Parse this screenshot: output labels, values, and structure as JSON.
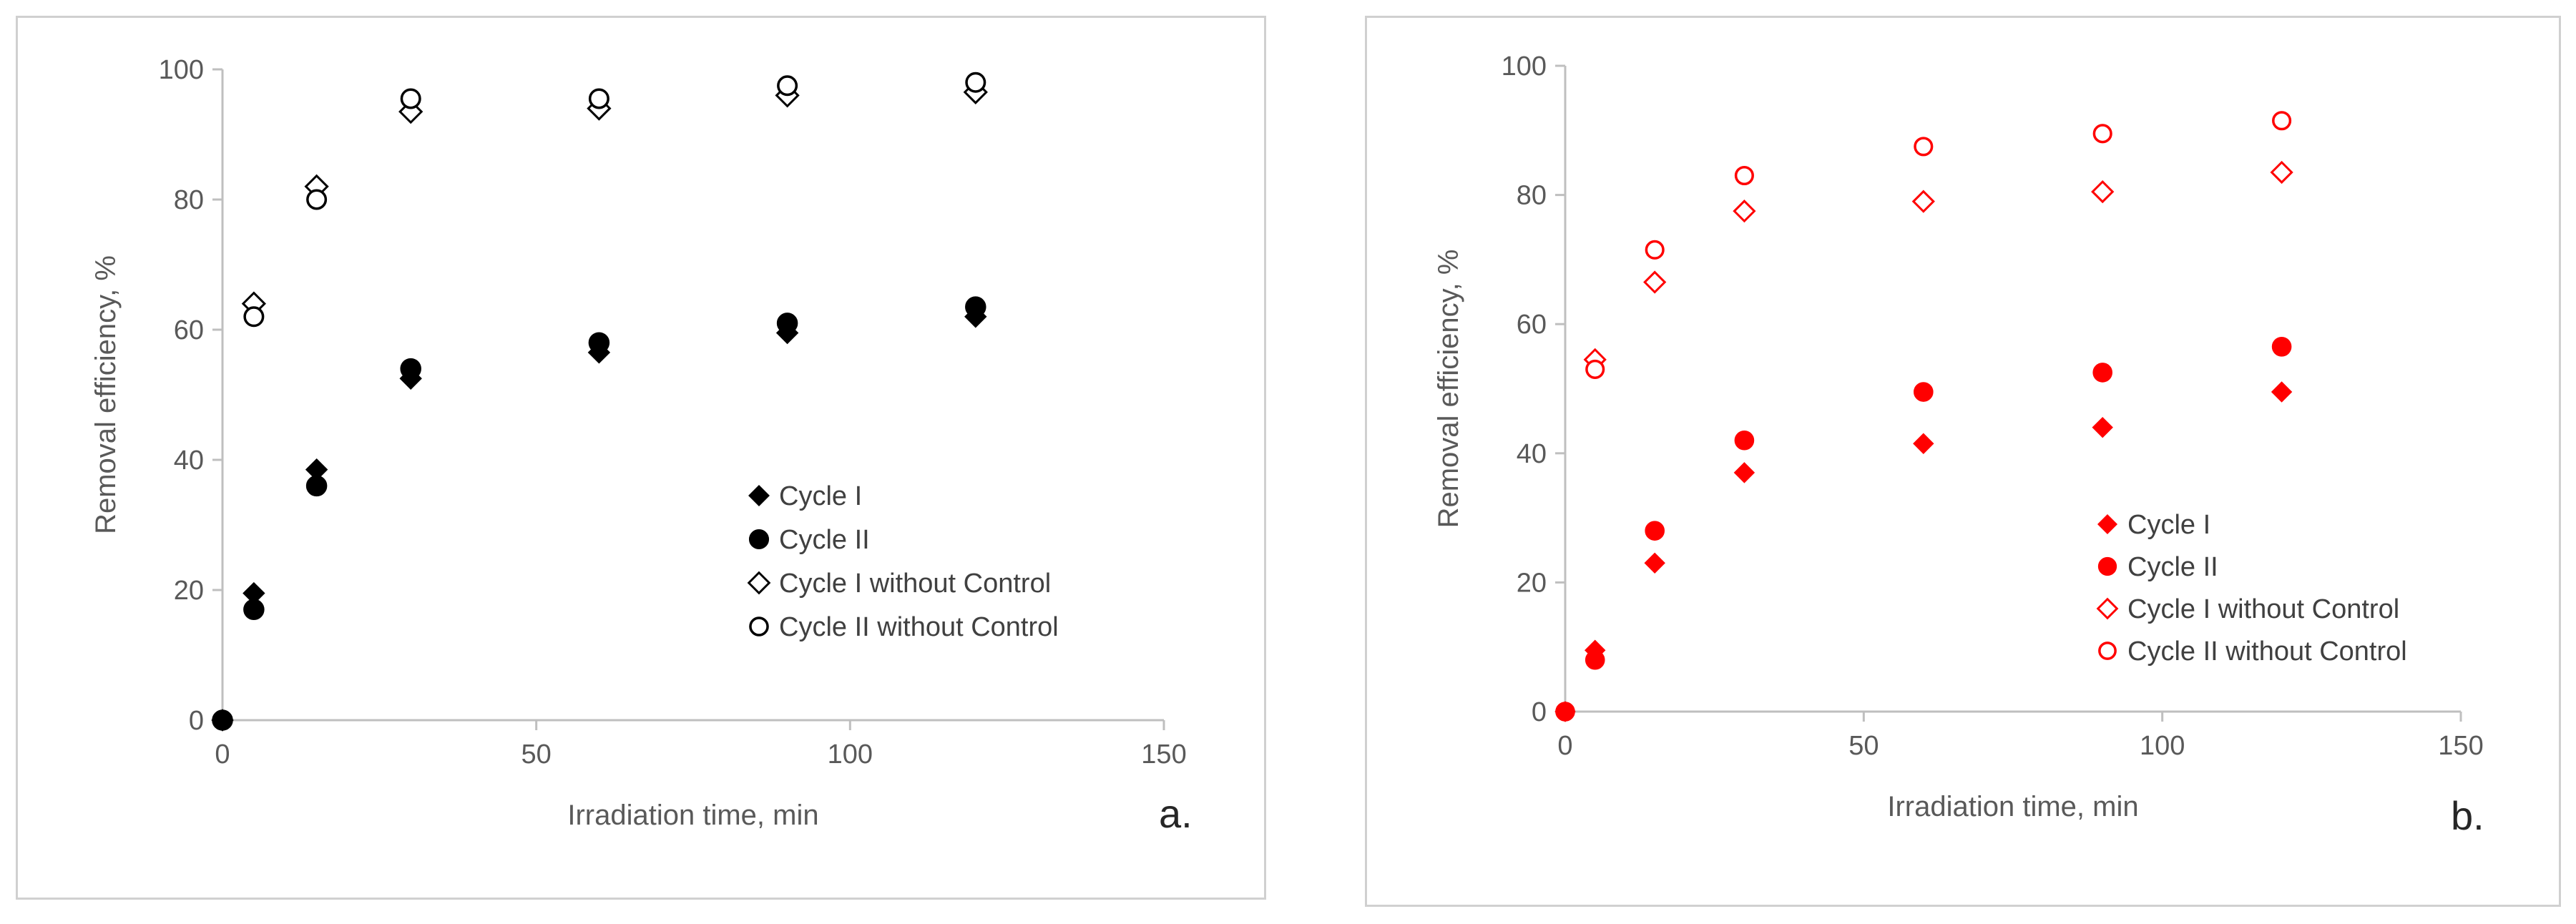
{
  "chart_data": [
    {
      "type": "scatter",
      "panel_label": "a.",
      "xlabel": "Irradiation time, min",
      "ylabel": "Removal efficiency, %",
      "xlim": [
        0,
        150
      ],
      "ylim": [
        0,
        100
      ],
      "xticks": [
        0,
        50,
        100,
        150
      ],
      "yticks": [
        0,
        20,
        40,
        60,
        80,
        100
      ],
      "color": "#000000",
      "legend_position": "bottom-right",
      "series": [
        {
          "name": "Cycle I",
          "marker": "diamond-filled",
          "x": [
            0,
            5,
            15,
            30,
            60,
            90,
            120
          ],
          "y": [
            0,
            19.5,
            38.5,
            52.5,
            56.5,
            59.5,
            62
          ]
        },
        {
          "name": "Cycle II",
          "marker": "circle-filled",
          "x": [
            0,
            5,
            15,
            30,
            60,
            90,
            120
          ],
          "y": [
            0,
            17,
            36,
            54,
            58,
            61,
            63.5
          ]
        },
        {
          "name": "Cycle I without Control",
          "marker": "diamond-open",
          "x": [
            5,
            15,
            30,
            60,
            90,
            120
          ],
          "y": [
            64,
            82,
            93.5,
            94,
            96,
            96.5
          ]
        },
        {
          "name": "Cycle II without Control",
          "marker": "circle-open",
          "x": [
            5,
            15,
            30,
            60,
            90,
            120
          ],
          "y": [
            62,
            80,
            95.5,
            95.5,
            97.5,
            98
          ]
        }
      ]
    },
    {
      "type": "scatter",
      "panel_label": "b.",
      "xlabel": "Irradiation time, min",
      "ylabel": "Removal efficiency, %",
      "xlim": [
        0,
        150
      ],
      "ylim": [
        0,
        100
      ],
      "xticks": [
        0,
        50,
        100,
        150
      ],
      "yticks": [
        0,
        20,
        40,
        60,
        80,
        100
      ],
      "color": "#ff0000",
      "legend_position": "bottom-right",
      "series": [
        {
          "name": "Cycle I",
          "marker": "diamond-filled",
          "x": [
            0,
            5,
            15,
            30,
            60,
            90,
            120
          ],
          "y": [
            0,
            9.5,
            23,
            37,
            41.5,
            44,
            49.5
          ]
        },
        {
          "name": "Cycle II",
          "marker": "circle-filled",
          "x": [
            0,
            5,
            15,
            30,
            60,
            90,
            120
          ],
          "y": [
            0,
            8,
            28,
            42,
            49.5,
            52.5,
            56.5
          ]
        },
        {
          "name": "Cycle I without Control",
          "marker": "diamond-open",
          "x": [
            5,
            15,
            30,
            60,
            90,
            120
          ],
          "y": [
            54.5,
            66.5,
            77.5,
            79,
            80.5,
            83.5
          ]
        },
        {
          "name": "Cycle II without Control",
          "marker": "circle-open",
          "x": [
            5,
            15,
            30,
            60,
            90,
            120
          ],
          "y": [
            53,
            71.5,
            83,
            87.5,
            89.5,
            91.5
          ]
        }
      ]
    }
  ]
}
